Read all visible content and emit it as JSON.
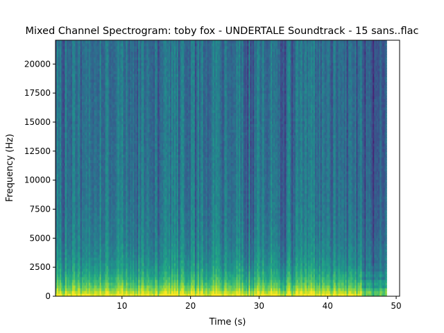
{
  "chart_data": {
    "type": "heatmap",
    "title": "Mixed Channel Spectrogram: toby fox - UNDERTALE Soundtrack - 15 sans..flac",
    "xlabel": "Time (s)",
    "ylabel": "Frequency (Hz)",
    "xlim": [
      0.3,
      50.5
    ],
    "ylim": [
      0,
      22050
    ],
    "data_time_range_s": [
      0.3,
      48.6
    ],
    "x_ticks": [
      10,
      20,
      30,
      40,
      50
    ],
    "x_tick_labels": [
      "10",
      "20",
      "30",
      "40",
      "50"
    ],
    "y_ticks": [
      0,
      2500,
      5000,
      7500,
      10000,
      12500,
      15000,
      17500,
      20000
    ],
    "y_tick_labels": [
      "0",
      "2500",
      "5000",
      "7500",
      "10000",
      "12500",
      "15000",
      "17500",
      "20000"
    ],
    "colormap": "viridis",
    "grid": false,
    "legend": "none",
    "description_of_intensity": "Highest energy (yellow) concentrated below ~1000 Hz; green band up to ~5000 Hz; mostly teal/blue above; track ending after ~45 s shows lower energy"
  },
  "colors": {
    "background": "#ffffff",
    "axes": "#000000",
    "colormap_low": "#440154",
    "colormap_mid": "#21918c",
    "colormap_high": "#fde725"
  }
}
